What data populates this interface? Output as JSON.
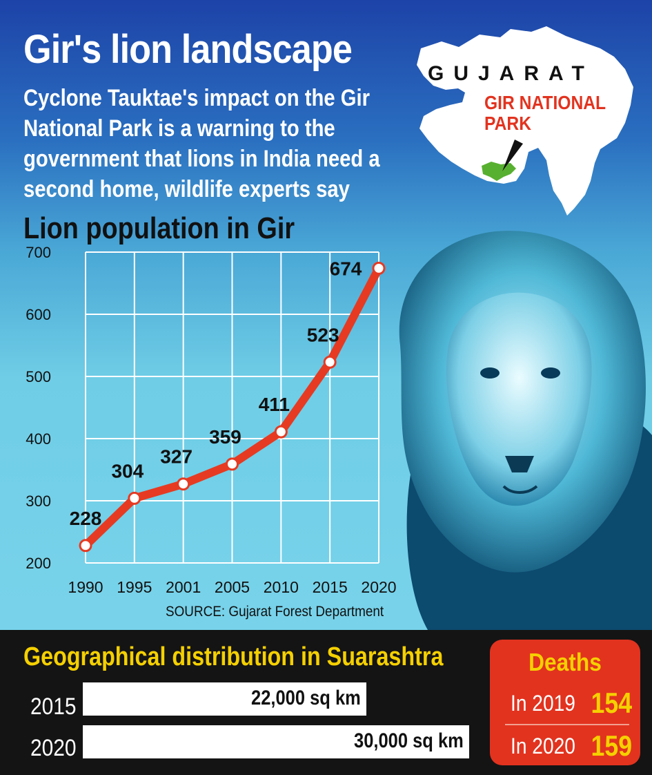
{
  "header": {
    "title": "Gir's lion landscape",
    "subtitle": "Cyclone Tauktae's impact on the Gir National Park is a warning to the government that lions in India need a second home, wildlife experts say"
  },
  "map": {
    "state_label": "GUJARAT",
    "park_label": "GIR NATIONAL PARK",
    "colors": {
      "state": "#ffffff",
      "park": "#58b030",
      "label": "#e2331f"
    }
  },
  "chart_data": {
    "type": "line",
    "title": "Lion population in Gir",
    "categories": [
      "1990",
      "1995",
      "2001",
      "2005",
      "2010",
      "2015",
      "2020"
    ],
    "series": [
      {
        "values": [
          228,
          304,
          327,
          359,
          411,
          523,
          674
        ]
      }
    ],
    "data_labels": [
      "228",
      "304",
      "327",
      "359",
      "411",
      "523",
      "674"
    ],
    "y_ticks": [
      200,
      300,
      400,
      500,
      600,
      700
    ],
    "ylim": [
      200,
      700
    ],
    "grid": true,
    "source": "SOURCE: Gujarat Forest Department",
    "colors": {
      "line": "#e63a22",
      "marker_fill": "#ffffff",
      "grid": "#ffffff"
    }
  },
  "geo": {
    "title": "Geographical distribution in Suarashtra",
    "max_area": 30000,
    "rows": [
      {
        "year": "2015",
        "area": 22000,
        "label": "22,000 sq km"
      },
      {
        "year": "2020",
        "area": 30000,
        "label": "30,000 sq km"
      }
    ]
  },
  "deaths": {
    "title": "Deaths",
    "rows": [
      {
        "label": "In 2019",
        "value": "154"
      },
      {
        "label": "In 2020",
        "value": "159"
      }
    ]
  },
  "colors": {
    "accent_yellow": "#f5d000",
    "accent_red": "#e2331f",
    "dark_band": "#141414"
  },
  "icons": [
    "lion-photo",
    "gujarat-map",
    "map-pointer-icon"
  ]
}
